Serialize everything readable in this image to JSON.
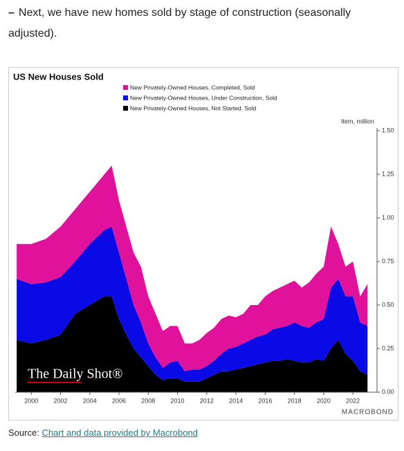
{
  "intro": "Next, we have new homes sold by stage of construction (seasonally adjusted).",
  "source": {
    "prefix": "Source:",
    "link": "Chart and data provided by Macrobond"
  },
  "chart_data": {
    "type": "area",
    "stacked": true,
    "title": "US New Houses Sold",
    "y_axis_label": "Item, million",
    "watermark": "The Daily Shot®",
    "branding": "MACROBOND",
    "x": [
      1999,
      2000,
      2001,
      2002,
      2003,
      2004,
      2005,
      2005.5,
      2006,
      2006.5,
      2007,
      2007.5,
      2008,
      2008.5,
      2009,
      2009.5,
      2010,
      2010.5,
      2011,
      2011.5,
      2012,
      2012.5,
      2013,
      2013.5,
      2014,
      2014.5,
      2015,
      2015.5,
      2016,
      2016.5,
      2017,
      2017.5,
      2018,
      2018.5,
      2019,
      2019.5,
      2020,
      2020.5,
      2021,
      2021.5,
      2022,
      2022.5,
      2023
    ],
    "series": [
      {
        "name": "New Privately-Owned Houses, Completed, Sold",
        "color": "#e0119a",
        "values": [
          0.2,
          0.23,
          0.25,
          0.29,
          0.3,
          0.3,
          0.32,
          0.35,
          0.3,
          0.3,
          0.3,
          0.32,
          0.27,
          0.25,
          0.21,
          0.21,
          0.2,
          0.16,
          0.15,
          0.17,
          0.19,
          0.19,
          0.2,
          0.19,
          0.17,
          0.17,
          0.2,
          0.18,
          0.22,
          0.22,
          0.23,
          0.24,
          0.24,
          0.22,
          0.26,
          0.28,
          0.3,
          0.35,
          0.2,
          0.17,
          0.2,
          0.15,
          0.24
        ]
      },
      {
        "name": "New Privately-Owned Houses, Under Construction, Sold",
        "color": "#0a0ae6",
        "values": [
          0.35,
          0.34,
          0.33,
          0.33,
          0.3,
          0.35,
          0.38,
          0.4,
          0.38,
          0.32,
          0.25,
          0.2,
          0.13,
          0.1,
          0.07,
          0.09,
          0.1,
          0.06,
          0.07,
          0.07,
          0.07,
          0.08,
          0.1,
          0.13,
          0.13,
          0.14,
          0.15,
          0.16,
          0.16,
          0.18,
          0.19,
          0.19,
          0.22,
          0.21,
          0.2,
          0.21,
          0.24,
          0.35,
          0.35,
          0.33,
          0.37,
          0.28,
          0.28
        ]
      },
      {
        "name": "New Privately-Owned Houses, Not Started, Sold",
        "color": "#000000",
        "values": [
          0.3,
          0.28,
          0.3,
          0.33,
          0.45,
          0.5,
          0.55,
          0.55,
          0.42,
          0.33,
          0.25,
          0.2,
          0.15,
          0.1,
          0.07,
          0.08,
          0.08,
          0.06,
          0.06,
          0.06,
          0.08,
          0.1,
          0.12,
          0.12,
          0.13,
          0.14,
          0.15,
          0.16,
          0.17,
          0.18,
          0.18,
          0.19,
          0.18,
          0.17,
          0.17,
          0.19,
          0.18,
          0.25,
          0.3,
          0.22,
          0.18,
          0.12,
          0.1
        ]
      }
    ],
    "xlim": [
      1998.9,
      2023.65
    ],
    "xticks": [
      2000,
      2002,
      2004,
      2006,
      2008,
      2010,
      2012,
      2014,
      2016,
      2018,
      2020,
      2022
    ],
    "ylim": [
      0,
      1.5
    ],
    "yticks": [
      {
        "value": 0,
        "label": "0.00"
      },
      {
        "value": 0.25,
        "label": "0.25"
      },
      {
        "value": 0.5,
        "label": "0.50"
      },
      {
        "value": 0.75,
        "label": "0.75"
      },
      {
        "value": 1,
        "label": "1.00"
      },
      {
        "value": 1.25,
        "label": "1.25"
      },
      {
        "value": 1.5,
        "label": "1.50"
      }
    ],
    "y_axis_side": "right"
  }
}
